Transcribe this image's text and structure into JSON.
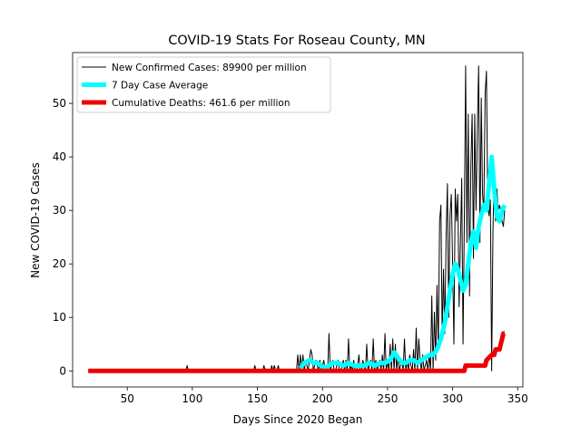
{
  "chart_data": {
    "type": "line",
    "title": "COVID-19 Stats For Roseau County, MN",
    "xlabel": "Days Since 2020 Began",
    "ylabel": "New COVID-19 Cases",
    "xlim": [
      8,
      354
    ],
    "ylim": [
      -3,
      59.5
    ],
    "xticks": [
      50,
      100,
      150,
      200,
      250,
      300,
      350
    ],
    "yticks": [
      0,
      10,
      20,
      30,
      40,
      50
    ],
    "grid": false,
    "legend_position": "top-left",
    "series": [
      {
        "name": "New Confirmed Cases: 89900 per million",
        "color": "#000000",
        "x": [
          20,
          60,
          95,
          96,
          97,
          98,
          140,
          148,
          149,
          150,
          155,
          160,
          161,
          162,
          163,
          164,
          165,
          166,
          175,
          180,
          181,
          182,
          183,
          184,
          185,
          186,
          187,
          188,
          189,
          190,
          191,
          192,
          193,
          194,
          195,
          196,
          197,
          198,
          199,
          200,
          201,
          202,
          203,
          204,
          205,
          206,
          207,
          208,
          209,
          210,
          211,
          212,
          213,
          214,
          215,
          216,
          217,
          218,
          219,
          220,
          221,
          222,
          223,
          224,
          225,
          226,
          227,
          228,
          229,
          230,
          231,
          232,
          233,
          234,
          235,
          236,
          237,
          238,
          239,
          240,
          241,
          242,
          243,
          244,
          245,
          246,
          247,
          248,
          249,
          250,
          251,
          252,
          253,
          254,
          255,
          256,
          257,
          258,
          259,
          260,
          261,
          262,
          263,
          264,
          265,
          266,
          267,
          268,
          269,
          270,
          271,
          272,
          273,
          274,
          275,
          276,
          277,
          278,
          279,
          280,
          281,
          282,
          283,
          284,
          285,
          286,
          287,
          288,
          289,
          290,
          291,
          292,
          293,
          294,
          295,
          296,
          297,
          298,
          299,
          300,
          301,
          302,
          303,
          304,
          305,
          306,
          307,
          308,
          309,
          310,
          311,
          312,
          313,
          314,
          315,
          316,
          317,
          318,
          319,
          320,
          321,
          322,
          323,
          324,
          325,
          326,
          327,
          328,
          329,
          330,
          331,
          332,
          333,
          334,
          335,
          336,
          337,
          338,
          339,
          340
        ],
        "y": [
          0,
          0,
          0,
          1,
          0,
          0,
          0,
          1,
          0,
          0,
          1,
          0,
          1,
          0,
          1,
          0,
          0,
          1,
          0,
          0,
          3,
          0,
          3,
          0,
          3,
          0,
          2,
          1,
          0,
          2,
          4,
          3,
          0,
          1,
          2,
          1,
          0,
          2,
          0,
          1,
          2,
          0,
          1,
          0,
          7,
          0,
          1,
          2,
          0,
          0,
          1,
          2,
          0,
          0,
          1,
          2,
          0,
          2,
          0,
          6,
          0,
          1,
          0,
          2,
          0,
          0,
          1,
          3,
          0,
          0,
          2,
          1,
          0,
          5,
          0,
          1,
          2,
          0,
          6,
          0,
          2,
          0,
          1,
          2,
          0,
          3,
          0,
          7,
          0,
          2,
          0,
          5,
          0,
          6,
          0,
          5,
          0,
          3,
          0,
          1,
          2,
          0,
          6,
          0,
          2,
          0,
          3,
          1,
          0,
          4,
          0,
          8,
          0,
          6,
          2,
          0,
          3,
          0,
          1,
          2,
          0,
          3,
          0,
          14,
          0,
          11,
          2,
          16,
          4,
          28,
          31,
          6,
          19,
          7,
          25,
          35,
          10,
          29,
          33,
          20,
          5,
          34,
          28,
          33,
          12,
          24,
          36,
          5,
          28,
          57,
          24,
          48,
          14,
          38,
          48,
          21,
          48,
          30,
          45,
          57,
          24,
          51,
          33,
          30,
          52,
          56,
          31,
          29,
          32,
          0,
          26,
          38,
          28,
          34,
          30,
          31,
          30,
          28,
          27,
          30
        ],
        "x_sparse": true
      },
      {
        "name": "7 Day Case Average",
        "color": "#00ffff",
        "x": [
          183,
          186,
          190,
          193,
          196,
          199,
          202,
          205,
          208,
          212,
          216,
          220,
          224,
          228,
          232,
          236,
          240,
          244,
          248,
          252,
          255,
          258,
          261,
          264,
          267,
          270,
          273,
          276,
          279,
          282,
          285,
          288,
          291,
          294,
          296,
          298,
          300,
          302,
          304,
          306,
          308,
          310,
          312,
          314,
          316,
          318,
          320,
          322,
          324,
          326,
          328,
          330,
          332,
          334,
          336,
          338,
          340
        ],
        "y": [
          0.5,
          1.5,
          2,
          1.5,
          1.5,
          1,
          0.5,
          1,
          1.5,
          1.5,
          1,
          1.5,
          1,
          1,
          1,
          1.5,
          1,
          1.5,
          1.5,
          2,
          3.5,
          2.5,
          1.5,
          1.5,
          2,
          2,
          1.5,
          2,
          2.5,
          3,
          3,
          4,
          6,
          9,
          12,
          15,
          18,
          20,
          19,
          17,
          15,
          16,
          20,
          24,
          26,
          23,
          27,
          29,
          31,
          30,
          35,
          40,
          34,
          29,
          28,
          30,
          31
        ]
      },
      {
        "name": "Cumulative Deaths: 461.6 per million",
        "color": "#ee0000",
        "x": [
          20,
          305,
          309,
          310,
          318,
          319,
          325,
          326,
          330,
          332,
          333,
          335,
          336,
          337,
          338,
          339,
          340
        ],
        "y": [
          0,
          0,
          0,
          1,
          1,
          1,
          1,
          2,
          3,
          3,
          4,
          4,
          4,
          5,
          6,
          7,
          7
        ]
      }
    ]
  }
}
